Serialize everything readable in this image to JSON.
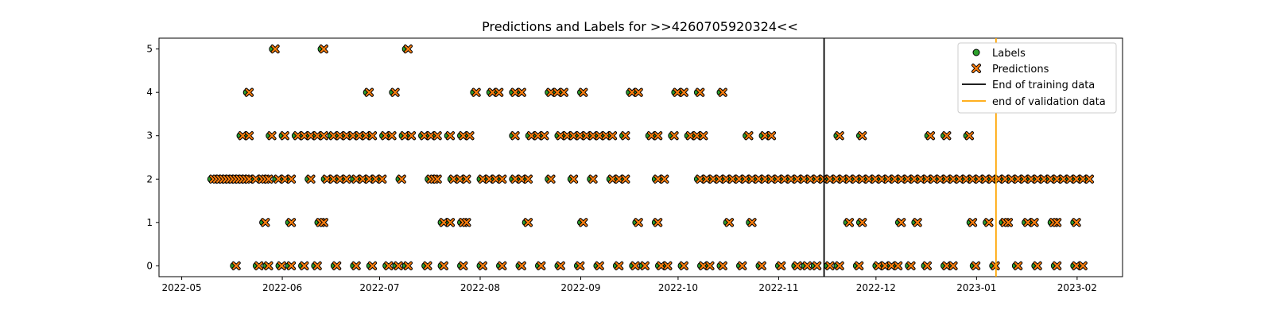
{
  "chart_data": {
    "type": "scatter",
    "title": "Predictions and Labels for >>4260705920324<<",
    "xlabel": "",
    "ylabel": "",
    "x_axis_type": "date",
    "xlim": [
      "2022-04-24",
      "2023-02-15"
    ],
    "ylim": [
      -0.25,
      5.25
    ],
    "x_ticks": [
      "2022-05",
      "2022-06",
      "2022-07",
      "2022-08",
      "2022-09",
      "2022-10",
      "2022-11",
      "2022-12",
      "2023-01",
      "2023-02"
    ],
    "y_ticks": [
      "0",
      "1",
      "2",
      "3",
      "4",
      "5"
    ],
    "grid": false,
    "legend_position": "top-right",
    "series": [
      {
        "name": "Labels",
        "marker": "circle",
        "color": "#2ca02c",
        "points": [
          [
            "2022-05-10",
            2
          ],
          [
            "2022-05-11",
            2
          ],
          [
            "2022-05-12",
            2
          ],
          [
            "2022-05-13",
            2
          ],
          [
            "2022-05-14",
            2
          ],
          [
            "2022-05-15",
            2
          ],
          [
            "2022-05-16",
            2
          ],
          [
            "2022-05-17",
            2
          ],
          [
            "2022-05-18",
            2
          ],
          [
            "2022-05-19",
            2
          ],
          [
            "2022-05-20",
            2
          ],
          [
            "2022-05-21",
            2
          ],
          [
            "2022-05-23",
            2
          ],
          [
            "2022-05-25",
            2
          ],
          [
            "2022-05-26",
            2
          ],
          [
            "2022-05-27",
            2
          ],
          [
            "2022-05-17",
            0
          ],
          [
            "2022-05-24",
            0
          ],
          [
            "2022-05-27",
            0
          ],
          [
            "2022-05-31",
            0
          ],
          [
            "2022-06-03",
            0
          ],
          [
            "2022-06-07",
            0
          ],
          [
            "2022-06-11",
            0
          ],
          [
            "2022-06-17",
            0
          ],
          [
            "2022-06-23",
            0
          ],
          [
            "2022-06-28",
            0
          ],
          [
            "2022-07-03",
            0
          ],
          [
            "2022-07-06",
            0
          ],
          [
            "2022-07-09",
            0
          ],
          [
            "2022-07-15",
            0
          ],
          [
            "2022-07-20",
            0
          ],
          [
            "2022-07-26",
            0
          ],
          [
            "2022-08-01",
            0
          ],
          [
            "2022-08-07",
            0
          ],
          [
            "2022-08-13",
            0
          ],
          [
            "2022-08-19",
            0
          ],
          [
            "2022-08-25",
            0
          ],
          [
            "2022-08-31",
            0
          ],
          [
            "2022-09-06",
            0
          ],
          [
            "2022-09-12",
            0
          ],
          [
            "2022-09-17",
            0
          ],
          [
            "2022-09-20",
            0
          ],
          [
            "2022-09-25",
            0
          ],
          [
            "2022-09-27",
            0
          ],
          [
            "2022-10-02",
            0
          ],
          [
            "2022-10-08",
            0
          ],
          [
            "2022-10-10",
            0
          ],
          [
            "2022-10-14",
            0
          ],
          [
            "2022-10-20",
            0
          ],
          [
            "2022-10-26",
            0
          ],
          [
            "2022-11-01",
            0
          ],
          [
            "2022-11-06",
            0
          ],
          [
            "2022-11-09",
            0
          ],
          [
            "2022-11-12",
            0
          ],
          [
            "2022-11-16",
            0
          ],
          [
            "2022-11-19",
            0
          ],
          [
            "2022-11-25",
            0
          ],
          [
            "2022-12-01",
            0
          ],
          [
            "2022-12-03",
            0
          ],
          [
            "2022-12-05",
            0
          ],
          [
            "2022-12-07",
            0
          ],
          [
            "2022-12-11",
            0
          ],
          [
            "2022-12-16",
            0
          ],
          [
            "2022-12-22",
            0
          ],
          [
            "2022-12-24",
            0
          ],
          [
            "2022-12-31",
            0
          ],
          [
            "2023-01-06",
            0
          ],
          [
            "2023-01-13",
            0
          ],
          [
            "2023-01-19",
            0
          ],
          [
            "2023-01-25",
            0
          ],
          [
            "2023-01-31",
            0
          ],
          [
            "2023-02-02",
            0
          ],
          [
            "2022-05-26",
            1
          ],
          [
            "2022-06-03",
            1
          ],
          [
            "2022-06-12",
            1
          ],
          [
            "2022-06-13",
            1
          ],
          [
            "2022-07-20",
            1
          ],
          [
            "2022-07-22",
            1
          ],
          [
            "2022-07-26",
            1
          ],
          [
            "2022-07-27",
            1
          ],
          [
            "2022-08-15",
            1
          ],
          [
            "2022-09-01",
            1
          ],
          [
            "2022-09-18",
            1
          ],
          [
            "2022-09-24",
            1
          ],
          [
            "2022-10-16",
            1
          ],
          [
            "2022-10-23",
            1
          ],
          [
            "2022-11-22",
            1
          ],
          [
            "2022-11-26",
            1
          ],
          [
            "2022-12-08",
            1
          ],
          [
            "2022-12-13",
            1
          ],
          [
            "2022-12-30",
            1
          ],
          [
            "2023-01-04",
            1
          ],
          [
            "2023-01-09",
            1
          ],
          [
            "2023-01-10",
            1
          ],
          [
            "2023-01-16",
            1
          ],
          [
            "2023-01-18",
            1
          ],
          [
            "2023-01-24",
            1
          ],
          [
            "2023-01-25",
            1
          ],
          [
            "2023-01-31",
            1
          ],
          [
            "2022-05-30",
            2
          ],
          [
            "2022-06-01",
            2
          ],
          [
            "2022-06-03",
            2
          ],
          [
            "2022-06-09",
            2
          ],
          [
            "2022-06-14",
            2
          ],
          [
            "2022-06-16",
            2
          ],
          [
            "2022-06-18",
            2
          ],
          [
            "2022-06-20",
            2
          ],
          [
            "2022-06-23",
            2
          ],
          [
            "2022-06-25",
            2
          ],
          [
            "2022-06-27",
            2
          ],
          [
            "2022-06-29",
            2
          ],
          [
            "2022-07-01",
            2
          ],
          [
            "2022-07-07",
            2
          ],
          [
            "2022-07-16",
            2
          ],
          [
            "2022-07-17",
            2
          ],
          [
            "2022-07-18",
            2
          ],
          [
            "2022-07-23",
            2
          ],
          [
            "2022-07-25",
            2
          ],
          [
            "2022-07-27",
            2
          ],
          [
            "2022-08-01",
            2
          ],
          [
            "2022-08-03",
            2
          ],
          [
            "2022-08-05",
            2
          ],
          [
            "2022-08-07",
            2
          ],
          [
            "2022-08-11",
            2
          ],
          [
            "2022-08-13",
            2
          ],
          [
            "2022-08-15",
            2
          ],
          [
            "2022-08-22",
            2
          ],
          [
            "2022-08-29",
            2
          ],
          [
            "2022-09-04",
            2
          ],
          [
            "2022-09-10",
            2
          ],
          [
            "2022-09-12",
            2
          ],
          [
            "2022-09-14",
            2
          ],
          [
            "2022-09-24",
            2
          ],
          [
            "2022-09-26",
            2
          ],
          [
            "2022-10-07",
            2
          ],
          [
            "2022-10-09",
            2
          ],
          [
            "2022-10-11",
            2
          ],
          [
            "2022-10-13",
            2
          ],
          [
            "2022-10-15",
            2
          ],
          [
            "2022-10-17",
            2
          ],
          [
            "2022-10-19",
            2
          ],
          [
            "2022-10-21",
            2
          ],
          [
            "2022-10-23",
            2
          ],
          [
            "2022-10-25",
            2
          ],
          [
            "2022-10-27",
            2
          ],
          [
            "2022-10-29",
            2
          ],
          [
            "2022-10-31",
            2
          ],
          [
            "2022-11-02",
            2
          ],
          [
            "2022-11-04",
            2
          ],
          [
            "2022-11-06",
            2
          ],
          [
            "2022-11-08",
            2
          ],
          [
            "2022-11-10",
            2
          ],
          [
            "2022-11-12",
            2
          ],
          [
            "2022-11-14",
            2
          ],
          [
            "2022-11-16",
            2
          ],
          [
            "2022-11-18",
            2
          ],
          [
            "2022-11-20",
            2
          ],
          [
            "2022-11-22",
            2
          ],
          [
            "2022-11-24",
            2
          ],
          [
            "2022-11-26",
            2
          ],
          [
            "2022-11-28",
            2
          ],
          [
            "2022-11-30",
            2
          ],
          [
            "2022-12-02",
            2
          ],
          [
            "2022-12-04",
            2
          ],
          [
            "2022-12-06",
            2
          ],
          [
            "2022-12-08",
            2
          ],
          [
            "2022-12-10",
            2
          ],
          [
            "2022-12-12",
            2
          ],
          [
            "2022-12-14",
            2
          ],
          [
            "2022-12-16",
            2
          ],
          [
            "2022-12-18",
            2
          ],
          [
            "2022-12-20",
            2
          ],
          [
            "2022-12-22",
            2
          ],
          [
            "2022-12-24",
            2
          ],
          [
            "2022-12-26",
            2
          ],
          [
            "2022-12-28",
            2
          ],
          [
            "2022-12-30",
            2
          ],
          [
            "2023-01-01",
            2
          ],
          [
            "2023-01-03",
            2
          ],
          [
            "2023-01-05",
            2
          ],
          [
            "2023-01-07",
            2
          ],
          [
            "2023-01-09",
            2
          ],
          [
            "2023-01-11",
            2
          ],
          [
            "2023-01-13",
            2
          ],
          [
            "2023-01-15",
            2
          ],
          [
            "2023-01-17",
            2
          ],
          [
            "2023-01-19",
            2
          ],
          [
            "2023-01-21",
            2
          ],
          [
            "2023-01-23",
            2
          ],
          [
            "2023-01-25",
            2
          ],
          [
            "2023-01-27",
            2
          ],
          [
            "2023-01-29",
            2
          ],
          [
            "2023-01-31",
            2
          ],
          [
            "2023-02-02",
            2
          ],
          [
            "2023-02-04",
            2
          ],
          [
            "2022-05-19",
            3
          ],
          [
            "2022-05-21",
            3
          ],
          [
            "2022-05-28",
            3
          ],
          [
            "2022-06-01",
            3
          ],
          [
            "2022-06-05",
            3
          ],
          [
            "2022-06-07",
            3
          ],
          [
            "2022-06-09",
            3
          ],
          [
            "2022-06-11",
            3
          ],
          [
            "2022-06-13",
            3
          ],
          [
            "2022-06-16",
            3
          ],
          [
            "2022-06-18",
            3
          ],
          [
            "2022-06-20",
            3
          ],
          [
            "2022-06-22",
            3
          ],
          [
            "2022-06-24",
            3
          ],
          [
            "2022-06-26",
            3
          ],
          [
            "2022-06-28",
            3
          ],
          [
            "2022-07-02",
            3
          ],
          [
            "2022-07-04",
            3
          ],
          [
            "2022-07-08",
            3
          ],
          [
            "2022-07-10",
            3
          ],
          [
            "2022-07-14",
            3
          ],
          [
            "2022-07-16",
            3
          ],
          [
            "2022-07-18",
            3
          ],
          [
            "2022-07-22",
            3
          ],
          [
            "2022-07-26",
            3
          ],
          [
            "2022-07-28",
            3
          ],
          [
            "2022-08-11",
            3
          ],
          [
            "2022-08-16",
            3
          ],
          [
            "2022-08-18",
            3
          ],
          [
            "2022-08-20",
            3
          ],
          [
            "2022-08-25",
            3
          ],
          [
            "2022-08-27",
            3
          ],
          [
            "2022-08-29",
            3
          ],
          [
            "2022-08-31",
            3
          ],
          [
            "2022-09-02",
            3
          ],
          [
            "2022-09-04",
            3
          ],
          [
            "2022-09-06",
            3
          ],
          [
            "2022-09-08",
            3
          ],
          [
            "2022-09-10",
            3
          ],
          [
            "2022-09-14",
            3
          ],
          [
            "2022-09-22",
            3
          ],
          [
            "2022-09-24",
            3
          ],
          [
            "2022-09-29",
            3
          ],
          [
            "2022-10-04",
            3
          ],
          [
            "2022-10-06",
            3
          ],
          [
            "2022-10-08",
            3
          ],
          [
            "2022-10-22",
            3
          ],
          [
            "2022-10-27",
            3
          ],
          [
            "2022-10-29",
            3
          ],
          [
            "2022-11-19",
            3
          ],
          [
            "2022-11-26",
            3
          ],
          [
            "2022-12-17",
            3
          ],
          [
            "2022-12-22",
            3
          ],
          [
            "2022-12-29",
            3
          ],
          [
            "2022-05-21",
            4
          ],
          [
            "2022-06-27",
            4
          ],
          [
            "2022-07-05",
            4
          ],
          [
            "2022-07-30",
            4
          ],
          [
            "2022-08-04",
            4
          ],
          [
            "2022-08-06",
            4
          ],
          [
            "2022-08-11",
            4
          ],
          [
            "2022-08-13",
            4
          ],
          [
            "2022-08-22",
            4
          ],
          [
            "2022-08-24",
            4
          ],
          [
            "2022-08-26",
            4
          ],
          [
            "2022-09-01",
            4
          ],
          [
            "2022-09-16",
            4
          ],
          [
            "2022-09-18",
            4
          ],
          [
            "2022-09-30",
            4
          ],
          [
            "2022-10-02",
            4
          ],
          [
            "2022-10-07",
            4
          ],
          [
            "2022-10-14",
            4
          ],
          [
            "2022-05-29",
            5
          ],
          [
            "2022-06-13",
            5
          ],
          [
            "2022-07-09",
            5
          ]
        ]
      },
      {
        "name": "Predictions",
        "marker": "x",
        "color": "#ff7f0e",
        "same_points_as": "Labels",
        "x_offset_days": 0.8
      }
    ],
    "vlines": [
      {
        "name": "End of training data",
        "x": "2022-11-15",
        "color": "#000000"
      },
      {
        "name": "end of validation data",
        "x": "2023-01-07",
        "color": "#ffa500"
      }
    ]
  }
}
